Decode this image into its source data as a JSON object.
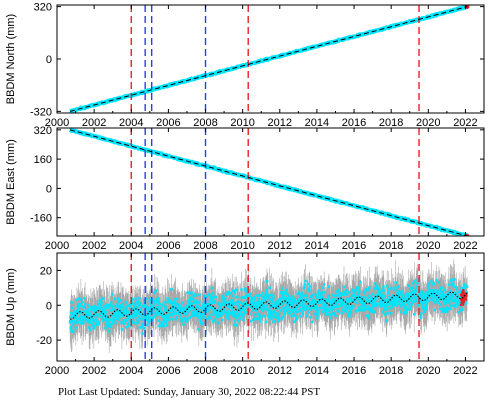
{
  "footer": "Plot Last Updated:   Sunday, January 30, 2022 08:22:44 PST",
  "colors": {
    "data": "#00e5ff",
    "errorbar": "#a9a9a9",
    "model": "#000000",
    "red_event": "#e8202a",
    "blue_event": "#2b3cf0",
    "recent": "#e8202a"
  },
  "chart_data": [
    {
      "type": "line",
      "ylabel": "BBDM North (mm)",
      "xlim": [
        2000,
        2023
      ],
      "ylim": [
        -330,
        330
      ],
      "xticks": [
        "2000",
        "2002",
        "2004",
        "2006",
        "2008",
        "2010",
        "2012",
        "2014",
        "2016",
        "2018",
        "2020",
        "2022"
      ],
      "yticks": [
        {
          "value": 320,
          "label": "320"
        },
        {
          "value": 0,
          "label": "0"
        },
        {
          "value": -320,
          "label": "-320"
        }
      ],
      "trend": {
        "x": [
          2000.7,
          2022.1
        ],
        "y": [
          -320,
          320
        ]
      },
      "noise_mm": 3
    },
    {
      "type": "line",
      "ylabel": "BBDM East (mm)",
      "xlim": [
        2000,
        2023
      ],
      "ylim": [
        -260,
        330
      ],
      "xticks": [
        "2000",
        "2002",
        "2004",
        "2006",
        "2008",
        "2010",
        "2012",
        "2014",
        "2016",
        "2018",
        "2020",
        "2022"
      ],
      "yticks": [
        {
          "value": 320,
          "label": "320"
        },
        {
          "value": 160,
          "label": "160"
        },
        {
          "value": 0,
          "label": "0"
        },
        {
          "value": -160,
          "label": "-160"
        }
      ],
      "trend": {
        "x": [
          2000.7,
          2022.1
        ],
        "y": [
          320,
          -260
        ]
      },
      "noise_mm": 3
    },
    {
      "type": "scatter",
      "ylabel": "BBDM Up (mm)",
      "xlim": [
        2000,
        2023
      ],
      "ylim": [
        -32,
        30
      ],
      "xticks": [
        "2000",
        "2002",
        "2004",
        "2006",
        "2008",
        "2010",
        "2012",
        "2014",
        "2016",
        "2018",
        "2020",
        "2022"
      ],
      "yticks": [
        {
          "value": 20,
          "label": "20"
        },
        {
          "value": 0,
          "label": "0"
        },
        {
          "value": -20,
          "label": "-20"
        }
      ],
      "trend": {
        "x": [
          2000.7,
          2022.1
        ],
        "y": [
          -6,
          6
        ]
      },
      "seasonal_amplitude_mm": 2,
      "noise_mm": 6,
      "errorbar_mm": 9
    }
  ],
  "events": [
    {
      "year": 2004.0,
      "color": "red"
    },
    {
      "year": 2004.75,
      "color": "blue"
    },
    {
      "year": 2005.1,
      "color": "blue"
    },
    {
      "year": 2008.0,
      "color": "blue"
    },
    {
      "year": 2010.3,
      "color": "red"
    },
    {
      "year": 2019.5,
      "color": "red"
    }
  ]
}
